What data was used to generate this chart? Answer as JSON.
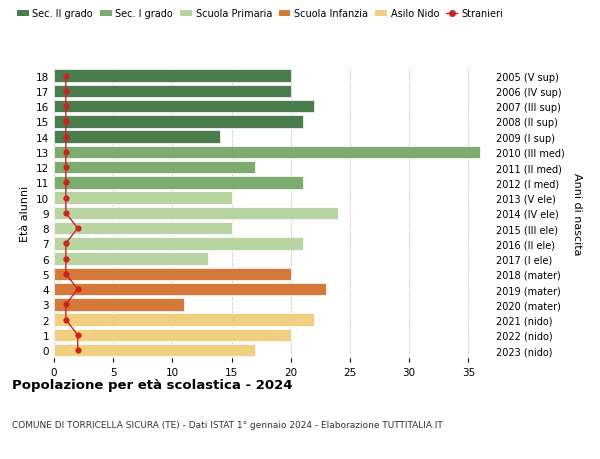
{
  "ages": [
    18,
    17,
    16,
    15,
    14,
    13,
    12,
    11,
    10,
    9,
    8,
    7,
    6,
    5,
    4,
    3,
    2,
    1,
    0
  ],
  "years": [
    "2005 (V sup)",
    "2006 (IV sup)",
    "2007 (III sup)",
    "2008 (II sup)",
    "2009 (I sup)",
    "2010 (III med)",
    "2011 (II med)",
    "2012 (I med)",
    "2013 (V ele)",
    "2014 (IV ele)",
    "2015 (III ele)",
    "2016 (II ele)",
    "2017 (I ele)",
    "2018 (mater)",
    "2019 (mater)",
    "2020 (mater)",
    "2021 (nido)",
    "2022 (nido)",
    "2023 (nido)"
  ],
  "bar_values": [
    20,
    20,
    22,
    21,
    14,
    36,
    17,
    21,
    15,
    24,
    15,
    21,
    13,
    20,
    23,
    11,
    22,
    20,
    17
  ],
  "bar_colors": [
    "#4a7c4e",
    "#4a7c4e",
    "#4a7c4e",
    "#4a7c4e",
    "#4a7c4e",
    "#7dac6e",
    "#7dac6e",
    "#7dac6e",
    "#b8d4a0",
    "#b8d4a0",
    "#b8d4a0",
    "#b8d4a0",
    "#b8d4a0",
    "#d4793a",
    "#d4793a",
    "#d4793a",
    "#f0d080",
    "#f0d080",
    "#f0d080"
  ],
  "stranieri_values": [
    1,
    1,
    1,
    1,
    1,
    1,
    1,
    1,
    1,
    1,
    2,
    1,
    1,
    1,
    2,
    1,
    1,
    2,
    2
  ],
  "legend_labels": [
    "Sec. II grado",
    "Sec. I grado",
    "Scuola Primaria",
    "Scuola Infanzia",
    "Asilo Nido",
    "Stranieri"
  ],
  "legend_colors": [
    "#4a7c4e",
    "#7dac6e",
    "#b8d4a0",
    "#d4793a",
    "#f0d080",
    "#cc2222"
  ],
  "ylabel_left": "Età alunni",
  "ylabel_right": "Anni di nascita",
  "title": "Popolazione per età scolastica - 2024",
  "subtitle": "COMUNE DI TORRICELLA SICURA (TE) - Dati ISTAT 1° gennaio 2024 - Elaborazione TUTTITALIA.IT",
  "xlim": [
    0,
    37
  ],
  "xticks": [
    0,
    5,
    10,
    15,
    20,
    25,
    30,
    35
  ],
  "background_color": "#ffffff",
  "grid_color": "#cccccc",
  "stranieri_color": "#cc2222"
}
